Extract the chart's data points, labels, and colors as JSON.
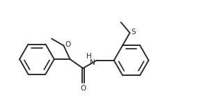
{
  "background_color": "#ffffff",
  "line_color": "#2a2a2a",
  "line_width": 1.4,
  "font_size_label": 7.5,
  "labels": {
    "methoxy_O": "O",
    "carbonyl_O": "O",
    "NH": "H",
    "sulfanyl_S": "S"
  },
  "figsize": [
    2.83,
    1.48
  ],
  "dpi": 100,
  "xlim": [
    0.0,
    9.5
  ],
  "ylim": [
    0.5,
    5.8
  ]
}
